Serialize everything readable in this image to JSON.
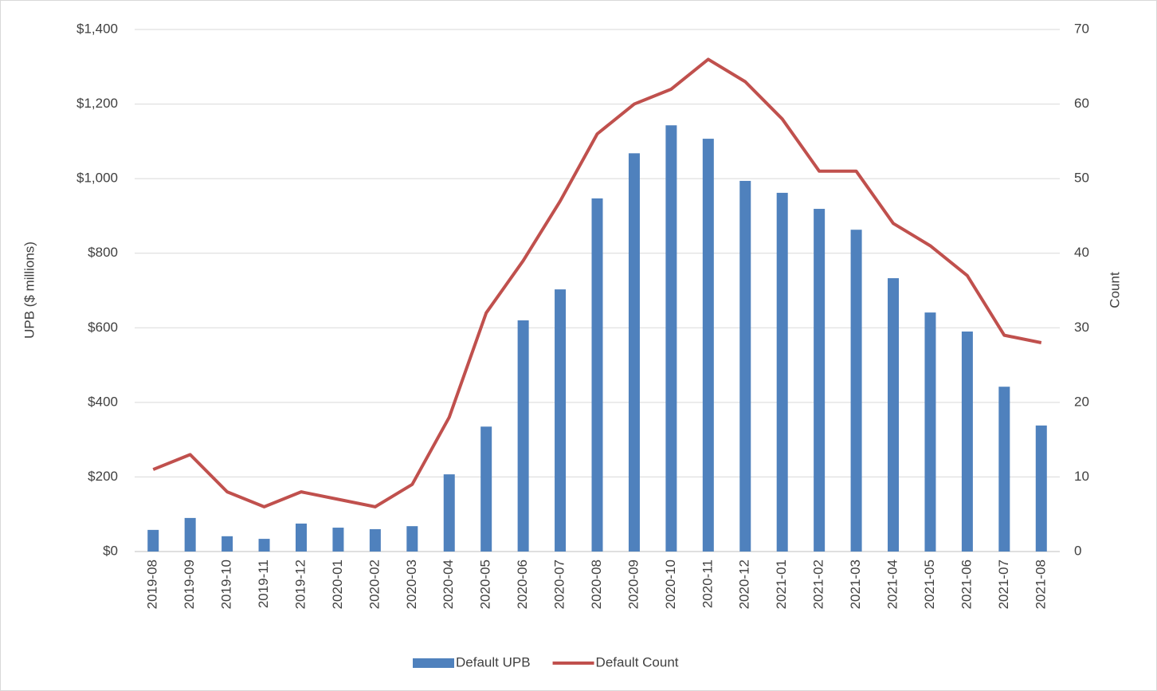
{
  "chart_data": {
    "type": "bar-line",
    "x": [
      "2019-08",
      "2019-09",
      "2019-10",
      "2019-11",
      "2019-12",
      "2020-01",
      "2020-02",
      "2020-03",
      "2020-04",
      "2020-05",
      "2020-06",
      "2020-07",
      "2020-08",
      "2020-09",
      "2020-10",
      "2020-11",
      "2020-12",
      "2021-01",
      "2021-02",
      "2021-03",
      "2021-04",
      "2021-05",
      "2021-06",
      "2021-07",
      "2021-08"
    ],
    "series": [
      {
        "name": "Default UPB",
        "type": "bar",
        "color": "#4f81bd",
        "values": [
          58,
          90,
          41,
          34,
          75,
          64,
          60,
          68,
          207,
          335,
          620,
          703,
          947,
          1068,
          1143,
          1107,
          994,
          962,
          919,
          863,
          733,
          641,
          590,
          442,
          338
        ]
      },
      {
        "name": "Default Count",
        "type": "line",
        "axis": "y2",
        "color": "#c0504d",
        "values": [
          11,
          13,
          8,
          6,
          8,
          7,
          6,
          9,
          18,
          32,
          39,
          47,
          56,
          60,
          62,
          66,
          63,
          58,
          51,
          51,
          44,
          41,
          37,
          29,
          28
        ]
      }
    ],
    "ylabel": "UPB ($ millions)",
    "y2label": "Count",
    "ylim": [
      0,
      1400
    ],
    "yticks": [
      {
        "value": 0,
        "label": "$0"
      },
      {
        "value": 200,
        "label": "$200"
      },
      {
        "value": 400,
        "label": "$400"
      },
      {
        "value": 600,
        "label": "$600"
      },
      {
        "value": 800,
        "label": "$800"
      },
      {
        "value": 1000,
        "label": "$1,000"
      },
      {
        "value": 1200,
        "label": "$1,200"
      },
      {
        "value": 1400,
        "label": "$1,400"
      }
    ],
    "y2lim": [
      0,
      70
    ],
    "y2ticks": [
      0,
      10,
      20,
      30,
      40,
      50,
      60,
      70
    ],
    "grid": true,
    "legend": "bottom"
  }
}
